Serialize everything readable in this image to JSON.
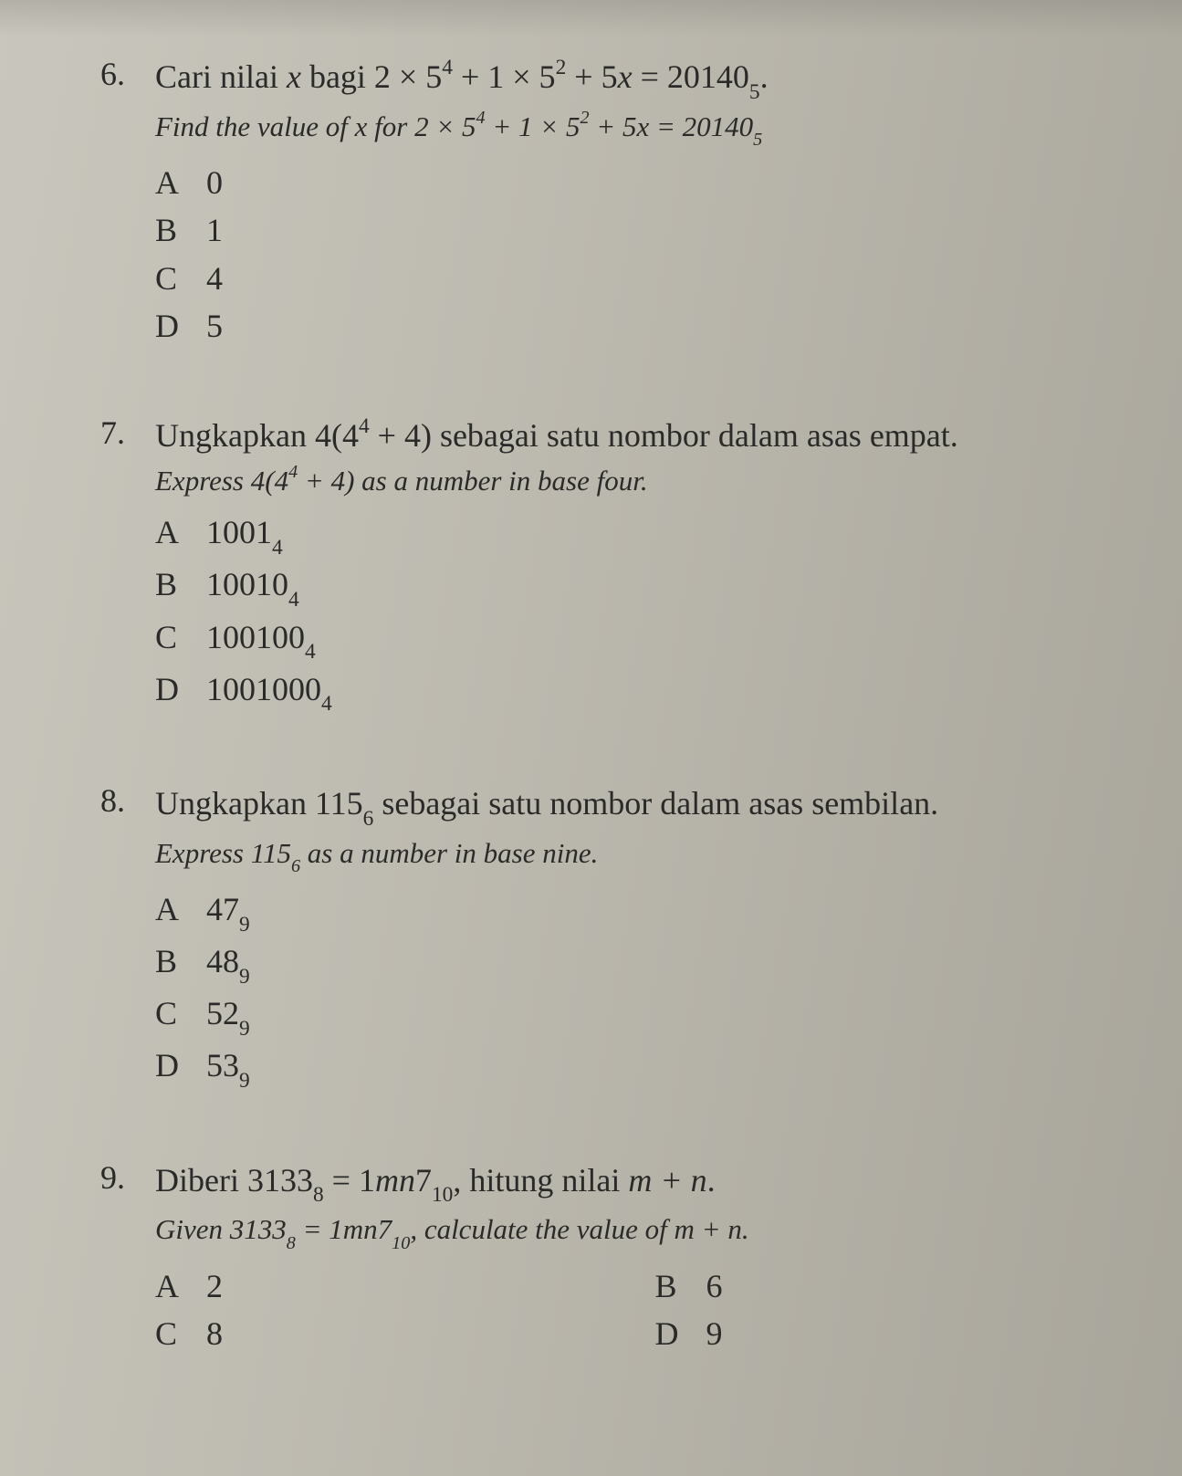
{
  "background_color": "#bdbab0",
  "text_color": "#2a2a28",
  "font_family": "Times New Roman",
  "q6": {
    "number": "6.",
    "ms_prefix": "Cari nilai ",
    "ms_var": "x",
    "ms_rest": " bagi 2 × 5",
    "ms_exp1": "4",
    "ms_mid1": " + 1 × 5",
    "ms_exp2": "2",
    "ms_mid2": " + 5",
    "ms_var2": "x",
    "ms_eq": " = 20140",
    "ms_sub": "5",
    "ms_end": ".",
    "en_prefix": "Find the value of x for 2 × 5",
    "en_exp1": "4",
    "en_mid1": " + 1 × 5",
    "en_exp2": "2",
    "en_mid2": " + 5x = 20140",
    "en_sub": "5",
    "optA_letter": "A",
    "optA_val": "0",
    "optB_letter": "B",
    "optB_val": "1",
    "optC_letter": "C",
    "optC_val": "4",
    "optD_letter": "D",
    "optD_val": "5"
  },
  "q7": {
    "number": "7.",
    "ms_prefix": "Ungkapkan 4(4",
    "ms_exp": "4",
    "ms_rest": " + 4) sebagai satu nombor dalam asas empat.",
    "en_prefix": "Express 4(4",
    "en_exp": "4",
    "en_rest": " + 4) as a number in base four.",
    "optA_letter": "A",
    "optA_val": "1001",
    "optA_sub": "4",
    "optB_letter": "B",
    "optB_val": "10010",
    "optB_sub": "4",
    "optC_letter": "C",
    "optC_val": "100100",
    "optC_sub": "4",
    "optD_letter": "D",
    "optD_val": "1001000",
    "optD_sub": "4"
  },
  "q8": {
    "number": "8.",
    "ms_prefix": "Ungkapkan 115",
    "ms_sub": "6",
    "ms_rest": " sebagai satu nombor dalam asas sembilan.",
    "en_prefix": "Express 115",
    "en_sub": "6",
    "en_rest": " as a number in base nine.",
    "optA_letter": "A",
    "optA_val": "47",
    "optA_sub": "9",
    "optB_letter": "B",
    "optB_val": "48",
    "optB_sub": "9",
    "optC_letter": "C",
    "optC_val": "52",
    "optC_sub": "9",
    "optD_letter": "D",
    "optD_val": "53",
    "optD_sub": "9"
  },
  "q9": {
    "number": "9.",
    "ms_prefix": "Diberi 3133",
    "ms_sub1": "8",
    "ms_mid": " = 1",
    "ms_mn": "mn",
    "ms_seven": "7",
    "ms_sub2": "10",
    "ms_rest": ", hitung nilai ",
    "ms_mpn": "m + n",
    "ms_end": ".",
    "en_prefix": "Given 3133",
    "en_sub1": "8",
    "en_mid": " = 1mn7",
    "en_sub2": "10",
    "en_rest": ", calculate the value of m + n.",
    "optA_letter": "A",
    "optA_val": "2",
    "optB_letter": "B",
    "optB_val": "6",
    "optC_letter": "C",
    "optC_val": "8",
    "optD_letter": "D",
    "optD_val": "9"
  }
}
